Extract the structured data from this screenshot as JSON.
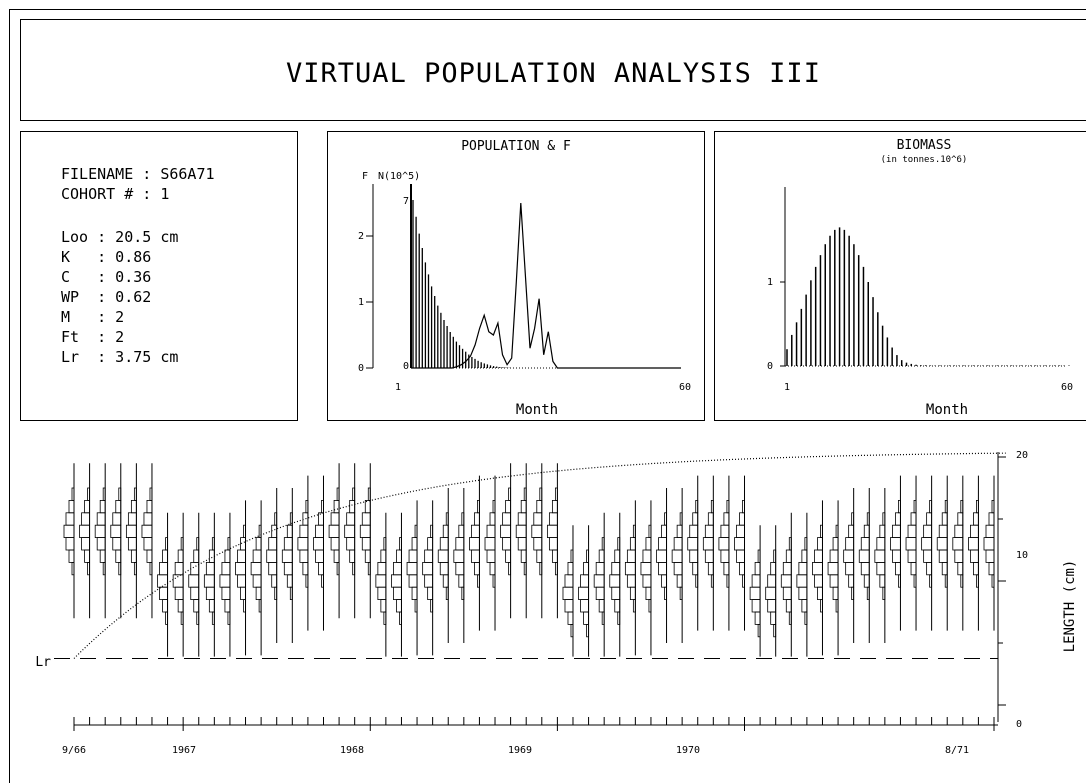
{
  "title": "VIRTUAL POPULATION ANALYSIS  III",
  "parameters": {
    "filename_line": "FILENAME : S66A71",
    "cohort_line": "COHORT # : 1",
    "lines": [
      "Loo : 20.5 cm",
      "K   : 0.86",
      "C   : 0.36",
      "WP  : 0.62",
      "M   : 2",
      "Ft  : 2",
      "Lr  : 3.75 cm"
    ]
  },
  "chart_data": [
    {
      "type": "bar",
      "title": "POPULATION & F",
      "left_axis_label": "F",
      "right_axis_label": "N(10^5)",
      "xlabel": "Month",
      "x_ticks": [
        "1",
        "60"
      ],
      "xlim": [
        1,
        60
      ],
      "f_ticks": [
        "0",
        "1",
        "2"
      ],
      "f_lim": [
        0,
        2.6
      ],
      "n_ticks": [
        "0",
        "7"
      ],
      "n_lim": [
        0,
        7.5
      ],
      "series": [
        {
          "name": "N",
          "kind": "bars",
          "values": [
            7.0,
            6.3,
            5.6,
            5.0,
            4.4,
            3.9,
            3.4,
            3.0,
            2.6,
            2.3,
            2.0,
            1.75,
            1.5,
            1.3,
            1.1,
            0.95,
            0.8,
            0.68,
            0.56,
            0.46,
            0.38,
            0.3,
            0.24,
            0.19,
            0.15,
            0.11,
            0.08,
            0.06,
            0.04,
            0.03,
            0.02,
            0.01
          ]
        },
        {
          "name": "F",
          "kind": "line",
          "values": [
            0,
            0,
            0,
            0,
            0,
            0,
            0,
            0,
            0,
            0,
            0.02,
            0.05,
            0.1,
            0.18,
            0.35,
            0.6,
            0.8,
            0.55,
            0.5,
            0.68,
            0.2,
            0.05,
            0.15,
            1.3,
            2.5,
            1.4,
            0.3,
            0.6,
            1.05,
            0.2,
            0.55,
            0.1,
            0,
            0,
            0,
            0,
            0,
            0,
            0,
            0,
            0,
            0,
            0,
            0,
            0,
            0,
            0,
            0,
            0,
            0,
            0,
            0,
            0,
            0,
            0,
            0,
            0,
            0,
            0,
            0
          ]
        }
      ]
    },
    {
      "type": "bar",
      "title": "BIOMASS",
      "subtitle": "(in tonnes.10^6)",
      "xlabel": "Month",
      "x_ticks": [
        "1",
        "60"
      ],
      "xlim": [
        1,
        60
      ],
      "y_ticks": [
        "0",
        "1"
      ],
      "ylim": [
        0,
        1.75
      ],
      "values": [
        0.2,
        0.37,
        0.52,
        0.68,
        0.85,
        1.02,
        1.18,
        1.32,
        1.45,
        1.55,
        1.62,
        1.65,
        1.62,
        1.55,
        1.45,
        1.32,
        1.18,
        1.0,
        0.82,
        0.64,
        0.48,
        0.34,
        0.22,
        0.13,
        0.07,
        0.04,
        0.025,
        0.015,
        0.01,
        0.008,
        0.006,
        0.005,
        0.004,
        0.004,
        0.003,
        0.003,
        0.003,
        0.002,
        0.002,
        0.002,
        0.002,
        0.002,
        0.002,
        0.002,
        0.002,
        0.002,
        0.002,
        0.002,
        0.002,
        0.002,
        0.002,
        0.002,
        0.002,
        0.002,
        0.002,
        0.002,
        0.002,
        0.002,
        0.002,
        0.002
      ]
    },
    {
      "type": "line",
      "ylabel": "LENGTH (cm)",
      "ylim": [
        0,
        20
      ],
      "y_ticks": [
        "0",
        "10",
        "20"
      ],
      "x_labels": [
        {
          "label": "9/66",
          "month": 0
        },
        {
          "label": "1967",
          "month": 7
        },
        {
          "label": "1968",
          "month": 19
        },
        {
          "label": "1969",
          "month": 31
        },
        {
          "label": "1970",
          "month": 43
        },
        {
          "label": "8/71",
          "month": 59
        }
      ],
      "months": 60,
      "lr_label": "Lr",
      "lr_value": 3.75,
      "length_frequency_modes": [
        14,
        14,
        14,
        14,
        14,
        14,
        10,
        10,
        10,
        10,
        10,
        11,
        11,
        12,
        12,
        13,
        13,
        14,
        14,
        14,
        10,
        10,
        11,
        11,
        12,
        12,
        13,
        13,
        14,
        14,
        14,
        14,
        9,
        9,
        10,
        10,
        11,
        11,
        12,
        12,
        13,
        13,
        13,
        13,
        9,
        9,
        10,
        10,
        11,
        11,
        12,
        12,
        12,
        13,
        13,
        13,
        13,
        13,
        13,
        13
      ]
    }
  ]
}
